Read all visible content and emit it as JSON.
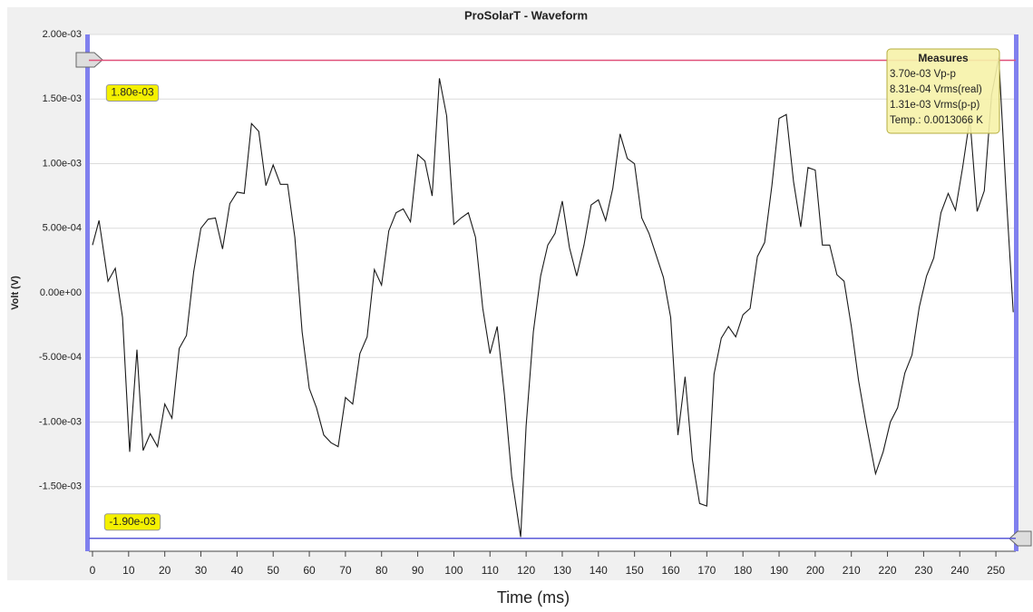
{
  "chart_data": {
    "type": "line",
    "title": "ProSolarT - Waveform",
    "xlabel": "Time (ms)",
    "ylabel": "Volt (V)",
    "x": [
      0,
      1.8,
      4.3,
      6.3,
      8.3,
      10.3,
      12.3,
      14,
      16,
      18,
      20,
      22,
      24,
      26,
      28,
      30,
      32,
      34,
      36,
      38,
      40,
      42,
      44,
      46,
      48,
      50,
      52,
      54,
      56,
      58,
      60,
      62,
      64,
      66,
      68,
      70,
      72,
      74,
      76,
      78,
      80,
      82,
      84,
      86,
      88,
      90,
      92,
      94,
      96,
      98,
      100,
      102,
      104,
      106,
      108,
      110,
      112,
      114,
      116,
      118.5,
      120,
      122,
      124,
      126,
      128,
      130,
      132,
      134,
      136,
      138,
      140,
      142,
      144,
      146,
      148,
      150,
      152,
      154,
      156,
      158,
      160,
      162,
      164,
      166,
      168,
      170,
      172,
      174,
      176,
      178,
      180,
      182,
      184,
      186,
      188,
      190,
      192,
      194,
      196,
      198,
      200,
      202,
      204,
      206,
      208,
      210,
      212,
      214,
      216.7,
      218.8,
      220.8,
      222.8,
      224.8,
      226.8,
      228.8,
      230.8,
      232.8,
      234.8,
      236.8,
      238.8,
      240.8,
      242.8,
      244.8,
      246.8,
      248.8,
      250.8,
      252.8,
      254.8
    ],
    "values": [
      0.00037,
      0.00056,
      9e-05,
      0.00019,
      -0.00019,
      -0.00123,
      -0.00044,
      -0.00122,
      -0.00109,
      -0.00119,
      -0.00086,
      -0.00097,
      -0.00043,
      -0.00033,
      0.00016,
      0.0005,
      0.00057,
      0.00058,
      0.00034,
      0.00069,
      0.00078,
      0.00077,
      0.00131,
      0.00125,
      0.00083,
      0.00099,
      0.00084,
      0.00084,
      0.00043,
      -0.0003,
      -0.00074,
      -0.00089,
      -0.0011,
      -0.00116,
      -0.00119,
      -0.00081,
      -0.00086,
      -0.00047,
      -0.00034,
      0.00018,
      6e-05,
      0.00048,
      0.00062,
      0.00065,
      0.00055,
      0.00107,
      0.00102,
      0.00075,
      0.00166,
      0.00137,
      0.00053,
      0.00058,
      0.00062,
      0.00043,
      -0.00012,
      -0.00047,
      -0.00026,
      -0.00079,
      -0.00142,
      -0.00189,
      -0.00103,
      -0.0003,
      0.00013,
      0.00037,
      0.00046,
      0.00071,
      0.00035,
      0.00013,
      0.00037,
      0.00068,
      0.00072,
      0.00056,
      0.00081,
      0.00123,
      0.00104,
      0.001,
      0.00058,
      0.00046,
      0.00029,
      0.00012,
      -0.00019,
      -0.0011,
      -0.00065,
      -0.00129,
      -0.00163,
      -0.00165,
      -0.00063,
      -0.00035,
      -0.00026,
      -0.00034,
      -0.00017,
      -0.00012,
      0.00028,
      0.00039,
      0.00083,
      0.00135,
      0.00138,
      0.00086,
      0.00051,
      0.00097,
      0.00095,
      0.00037,
      0.00037,
      0.00014,
      9e-05,
      -0.00026,
      -0.00068,
      -0.001,
      -0.0014,
      -0.00123,
      -0.001,
      -0.00089,
      -0.00062,
      -0.00048,
      -0.00011,
      0.00013,
      0.00027,
      0.00062,
      0.00077,
      0.00064,
      0.00097,
      0.00135,
      0.00063,
      0.00079,
      0.00153,
      0.00182,
      0.00079,
      -0.00015
    ],
    "color": "#1a1a1a",
    "xlim": [
      -1,
      255.5
    ],
    "ylim": [
      -0.002,
      0.002
    ],
    "xticks": [
      0,
      10,
      20,
      30,
      40,
      50,
      60,
      70,
      80,
      90,
      100,
      110,
      120,
      130,
      140,
      150,
      160,
      170,
      180,
      190,
      200,
      210,
      220,
      230,
      240,
      250
    ],
    "yticks": [
      {
        "value": 0.002,
        "label": "2.00e-03"
      },
      {
        "value": 0.0015,
        "label": "1.50e-03"
      },
      {
        "value": 0.001,
        "label": "1.00e-03"
      },
      {
        "value": 0.0005,
        "label": "5.00e-04"
      },
      {
        "value": 0,
        "label": "0.00e+00"
      },
      {
        "value": -0.0005,
        "label": "-5.00e-04"
      },
      {
        "value": -0.001,
        "label": "-1.00e-03"
      },
      {
        "value": -0.0015,
        "label": "-1.50e-03"
      }
    ],
    "grid": true,
    "cursors": [
      {
        "value": 0.0018,
        "label": "1.80e-03",
        "color": "#e0507a"
      },
      {
        "value": -0.0019,
        "label": "-1.90e-03",
        "color": "#5a5ad8"
      }
    ],
    "measures": {
      "title": "Measures",
      "lines": [
        "3.70e-03 Vp-p",
        "8.31e-04 Vrms(real)",
        "1.31e-03 Vrms(p-p)",
        "Temp.: 0.0013066 K"
      ]
    }
  }
}
